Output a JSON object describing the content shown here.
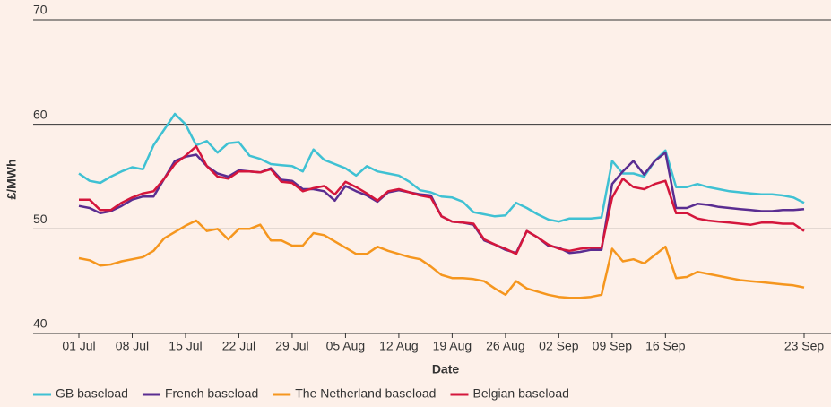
{
  "chart_data": {
    "type": "line",
    "x_label": "Date",
    "y_label": "£/MWh",
    "categories": [
      "01 Jul",
      null,
      null,
      null,
      null,
      "08 Jul",
      null,
      null,
      null,
      null,
      "15 Jul",
      null,
      null,
      null,
      null,
      "22 Jul",
      null,
      null,
      null,
      null,
      "29 Jul",
      null,
      null,
      null,
      null,
      "05 Aug",
      null,
      null,
      null,
      null,
      "12 Aug",
      null,
      null,
      null,
      null,
      "19 Aug",
      null,
      null,
      null,
      null,
      "26 Aug",
      null,
      null,
      null,
      null,
      "02 Sep",
      null,
      null,
      null,
      null,
      "09 Sep",
      null,
      null,
      null,
      null,
      "16 Sep",
      null,
      null,
      null,
      null,
      null,
      null,
      null,
      null,
      null,
      null,
      null,
      null,
      "23 Sep"
    ],
    "series": [
      {
        "name": "GB baseload",
        "color": "#3fc1d3",
        "values": [
          55.3,
          54.6,
          54.4,
          55.0,
          55.5,
          55.9,
          55.7,
          58.0,
          59.5,
          61.0,
          60.0,
          58.0,
          58.4,
          57.3,
          58.2,
          58.3,
          57.0,
          56.7,
          56.2,
          56.1,
          56.0,
          55.5,
          57.6,
          56.6,
          56.2,
          55.8,
          55.1,
          56.0,
          55.5,
          55.3,
          55.1,
          54.5,
          53.7,
          53.5,
          53.1,
          53.0,
          52.6,
          51.6,
          51.4,
          51.2,
          51.3,
          52.5,
          52.0,
          51.4,
          50.9,
          50.7,
          51.0,
          51.0,
          51.0,
          51.1,
          56.5,
          55.3,
          55.3,
          55.0,
          56.5,
          57.5,
          54.0,
          54.0,
          54.3,
          54.0,
          53.8,
          53.6,
          53.5,
          53.4,
          53.3,
          53.3,
          53.2,
          53.0,
          52.5
        ]
      },
      {
        "name": "French baseload",
        "color": "#5a2d91",
        "values": [
          52.2,
          52.0,
          51.5,
          51.7,
          52.2,
          52.8,
          53.1,
          53.1,
          54.8,
          56.5,
          56.9,
          57.1,
          56.0,
          55.3,
          55.0,
          55.6,
          55.5,
          55.4,
          55.8,
          54.7,
          54.6,
          53.8,
          53.8,
          53.6,
          52.7,
          54.1,
          53.6,
          53.2,
          52.6,
          53.5,
          53.7,
          53.5,
          53.3,
          53.2,
          51.2,
          50.7,
          50.6,
          50.4,
          48.9,
          48.5,
          48.0,
          47.7,
          49.8,
          49.2,
          48.4,
          48.2,
          47.7,
          47.8,
          48.0,
          48.0,
          54.3,
          55.5,
          56.5,
          55.2,
          56.5,
          57.3,
          52.0,
          52.0,
          52.4,
          52.3,
          52.1,
          52.0,
          51.9,
          51.8,
          51.7,
          51.7,
          51.8,
          51.8,
          51.9
        ]
      },
      {
        "name": "The Netherland baseload",
        "color": "#f5961e",
        "values": [
          47.2,
          47.0,
          46.5,
          46.6,
          46.9,
          47.1,
          47.3,
          47.9,
          49.1,
          49.7,
          50.3,
          50.8,
          49.8,
          50.0,
          49.0,
          50.0,
          50.0,
          50.4,
          48.9,
          48.9,
          48.4,
          48.4,
          49.6,
          49.4,
          48.8,
          48.2,
          47.6,
          47.6,
          48.3,
          47.9,
          47.6,
          47.3,
          47.1,
          46.4,
          45.6,
          45.3,
          45.3,
          45.2,
          45.0,
          44.3,
          43.7,
          45.0,
          44.3,
          44.0,
          43.7,
          43.5,
          43.4,
          43.4,
          43.5,
          43.7,
          48.1,
          46.9,
          47.1,
          46.7,
          47.5,
          48.3,
          45.3,
          45.4,
          45.9,
          45.7,
          45.5,
          45.3,
          45.1,
          45.0,
          44.9,
          44.8,
          44.7,
          44.6,
          44.4
        ]
      },
      {
        "name": "Belgian baseload",
        "color": "#d4163c",
        "values": [
          52.8,
          52.8,
          51.8,
          51.8,
          52.5,
          53.0,
          53.4,
          53.6,
          54.8,
          56.2,
          57.0,
          57.9,
          56.0,
          55.0,
          54.8,
          55.5,
          55.5,
          55.4,
          55.7,
          54.5,
          54.4,
          53.6,
          53.9,
          54.1,
          53.3,
          54.5,
          54.0,
          53.4,
          52.7,
          53.6,
          53.8,
          53.5,
          53.2,
          53.0,
          51.2,
          50.7,
          50.6,
          50.5,
          49.0,
          48.5,
          48.1,
          47.6,
          49.8,
          49.2,
          48.5,
          48.1,
          47.9,
          48.1,
          48.2,
          48.2,
          53.0,
          54.8,
          54.0,
          53.8,
          54.3,
          54.6,
          51.5,
          51.5,
          51.0,
          50.8,
          50.7,
          50.6,
          50.5,
          50.4,
          50.6,
          50.6,
          50.5,
          50.5,
          49.8
        ]
      }
    ],
    "ylim": [
      40,
      70
    ],
    "yticks": [
      40,
      50,
      60,
      70
    ],
    "grid": true
  }
}
